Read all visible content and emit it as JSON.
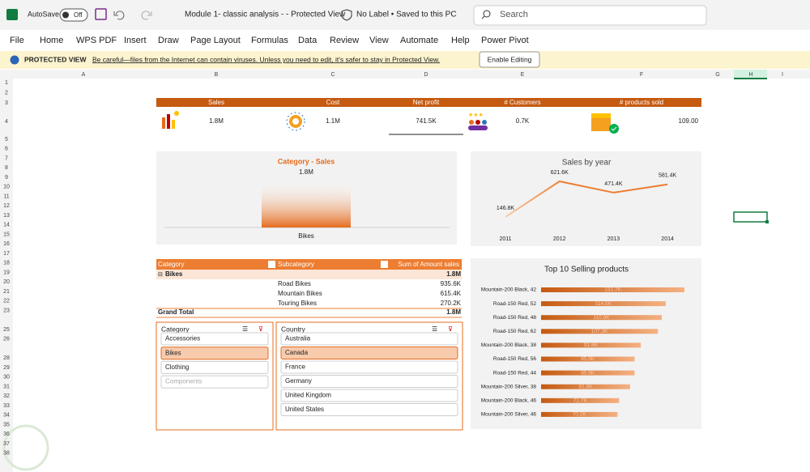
{
  "title_bar": {
    "autosave": "AutoSave",
    "toggle": "Off",
    "document": "Module 1- classic analysis -  - Protected View",
    "label": "No Label • Saved to this PC",
    "search": "Search"
  },
  "menu": [
    "File",
    "Home",
    "WPS PDF",
    "Insert",
    "Draw",
    "Page Layout",
    "Formulas",
    "Data",
    "Review",
    "View",
    "Automate",
    "Help",
    "Power Pivot"
  ],
  "protected_view": {
    "label": "PROTECTED VIEW",
    "message": "Be careful—files from the Internet can contain viruses. Unless you need to edit, it's safer to stay in Protected View.",
    "button": "Enable Editing"
  },
  "sheet": {
    "columns": [
      "A",
      "B",
      "C",
      "D",
      "E",
      "F",
      "G",
      "H",
      "I"
    ],
    "rows": [
      "1",
      "2",
      "3",
      "4",
      "5",
      "6",
      "7",
      "8",
      "9",
      "10",
      "11",
      "12",
      "13",
      "14",
      "15",
      "16",
      "17",
      "18",
      "19",
      "20",
      "21",
      "22",
      "23",
      "25",
      "26",
      "28",
      "29",
      "30",
      "31",
      "32",
      "33",
      "34",
      "35",
      "36",
      "37",
      "38"
    ]
  },
  "kpis": [
    {
      "label": "Sales",
      "value": "1.8M"
    },
    {
      "label": "Cost",
      "value": "1.1M"
    },
    {
      "label": "Net profit",
      "value": "741.5K"
    },
    {
      "label": "# Customers",
      "value": "0.7K"
    },
    {
      "label": "# products sold",
      "value": "109.00"
    }
  ],
  "chart_data": [
    {
      "type": "bar",
      "title": "Category - Sales",
      "categories": [
        "Bikes"
      ],
      "values": [
        1800000
      ],
      "value_labels": [
        "1.8M"
      ],
      "color": "#e46c1f"
    },
    {
      "type": "line",
      "title": "Sales by year",
      "categories": [
        "2011",
        "2012",
        "2013",
        "2014"
      ],
      "values": [
        146800,
        621600,
        471400,
        581400
      ],
      "value_labels": [
        "146.8K",
        "621.6K",
        "471.4K",
        "581.4K"
      ],
      "color": "#ed7d31"
    },
    {
      "type": "barh",
      "title": "Top 10 Selling products",
      "categories": [
        "Mountain-200 Black, 42",
        "Road-150 Red, 52",
        "Road-150 Red, 48",
        "Road-150 Red, 62",
        "Mountain-200 Black, 38",
        "Road-150 Red, 56",
        "Road-150 Red, 44",
        "Mountain-200 Silver, 38",
        "Mountain-200 Black, 46",
        "Mountain-200 Silver, 46"
      ],
      "values": [
        131700,
        114500,
        110900,
        107300,
        91600,
        85900,
        85900,
        81800,
        71700,
        70200
      ],
      "value_labels": [
        "131.7K",
        "114.5K",
        "110.9K",
        "107.3K",
        "91.6K",
        "85.9K",
        "85.9K",
        "81.8K",
        "71.7K",
        "70.2K"
      ],
      "color": "#c55a11"
    }
  ],
  "pivot": {
    "headers": [
      "Category",
      "Subcategory",
      "Sum of Amount sales"
    ],
    "group": {
      "label": "Bikes",
      "total": "1.8M"
    },
    "items": [
      {
        "name": "Road Bikes",
        "value": "935.6K"
      },
      {
        "name": "Mountain Bikes",
        "value": "615.4K"
      },
      {
        "name": "Touring Bikes",
        "value": "270.2K"
      }
    ],
    "grand_total": {
      "label": "Grand Total",
      "value": "1.8M"
    }
  },
  "slicers": [
    {
      "title": "Category",
      "items": [
        "Accessories",
        "Bikes",
        "Clothing",
        "Components"
      ],
      "selected": 1,
      "disabled": 3
    },
    {
      "title": "Country",
      "items": [
        "Australia",
        "Canada",
        "France",
        "Germany",
        "United Kingdom",
        "United States"
      ],
      "selected": 1
    }
  ]
}
